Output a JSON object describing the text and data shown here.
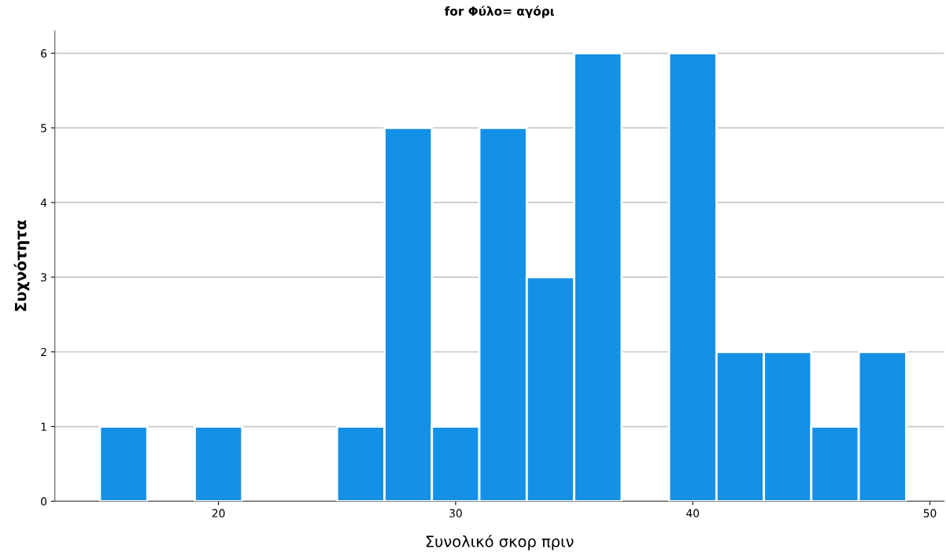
{
  "chart_data": {
    "type": "histogram",
    "title": "for Φύλο= αγόρι",
    "xlabel": "Συνολικό σκορ πριν",
    "ylabel": "Συχνότητα",
    "bins": [
      15,
      17,
      19,
      21,
      23,
      25,
      27,
      29,
      31,
      33,
      35,
      37,
      39,
      41,
      43,
      45,
      47,
      49
    ],
    "values": [
      1,
      0,
      1,
      0,
      0,
      1,
      5,
      1,
      5,
      3,
      6,
      0,
      6,
      2,
      2,
      1,
      2
    ],
    "color": "#1490e6",
    "xlim": [
      13.1,
      50.6
    ],
    "xticks": [
      20,
      30,
      40,
      50
    ],
    "ylim": [
      0,
      6.3
    ],
    "yticks": [
      0,
      1,
      2,
      3,
      4,
      5,
      6
    ],
    "grid": "y"
  }
}
